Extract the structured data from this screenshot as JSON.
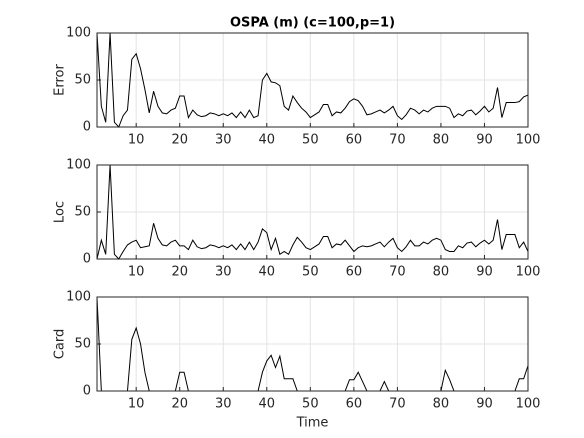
{
  "chart_data": [
    {
      "type": "line",
      "title": "OSPA (m) (c=100,p=1)",
      "ylabel": "Error",
      "color": "#000000",
      "grid": true,
      "x": [
        1,
        2,
        3,
        4,
        5,
        6,
        7,
        8,
        9,
        10,
        11,
        12,
        13,
        14,
        15,
        16,
        17,
        18,
        19,
        20,
        21,
        22,
        23,
        24,
        25,
        26,
        27,
        28,
        29,
        30,
        31,
        32,
        33,
        34,
        35,
        36,
        37,
        38,
        39,
        40,
        41,
        42,
        43,
        44,
        45,
        46,
        47,
        48,
        49,
        50,
        51,
        52,
        53,
        54,
        55,
        56,
        57,
        58,
        59,
        60,
        61,
        62,
        63,
        64,
        65,
        66,
        67,
        68,
        69,
        70,
        71,
        72,
        73,
        74,
        75,
        76,
        77,
        78,
        79,
        80,
        81,
        82,
        83,
        84,
        85,
        86,
        87,
        88,
        89,
        90,
        91,
        92,
        93,
        94,
        95,
        96,
        97,
        98,
        99,
        100
      ],
      "values": [
        100,
        22,
        5,
        100,
        5,
        0,
        12,
        18,
        72,
        78,
        62,
        40,
        15,
        38,
        22,
        15,
        14,
        18,
        20,
        33,
        33,
        10,
        18,
        13,
        11,
        12,
        15,
        14,
        12,
        14,
        12,
        15,
        10,
        16,
        10,
        18,
        10,
        12,
        50,
        57,
        48,
        47,
        44,
        22,
        18,
        33,
        26,
        20,
        16,
        10,
        13,
        16,
        24,
        24,
        12,
        16,
        15,
        20,
        27,
        30,
        28,
        22,
        13,
        14,
        16,
        18,
        15,
        18,
        22,
        12,
        8,
        13,
        20,
        18,
        14,
        18,
        16,
        20,
        22,
        22,
        22,
        20,
        10,
        14,
        12,
        17,
        18,
        13,
        17,
        22,
        16,
        20,
        42,
        10,
        26,
        26,
        26,
        27,
        32,
        34
      ],
      "xlim": [
        1,
        100
      ],
      "xticks": [
        10,
        20,
        30,
        40,
        50,
        60,
        70,
        80,
        90,
        100
      ],
      "ylim": [
        0,
        100
      ],
      "yticks": [
        0,
        50,
        100
      ]
    },
    {
      "type": "line",
      "ylabel": "Loc",
      "color": "#000000",
      "grid": true,
      "x": [
        1,
        2,
        3,
        4,
        5,
        6,
        7,
        8,
        9,
        10,
        11,
        12,
        13,
        14,
        15,
        16,
        17,
        18,
        19,
        20,
        21,
        22,
        23,
        24,
        25,
        26,
        27,
        28,
        29,
        30,
        31,
        32,
        33,
        34,
        35,
        36,
        37,
        38,
        39,
        40,
        41,
        42,
        43,
        44,
        45,
        46,
        47,
        48,
        49,
        50,
        51,
        52,
        53,
        54,
        55,
        56,
        57,
        58,
        59,
        60,
        61,
        62,
        63,
        64,
        65,
        66,
        67,
        68,
        69,
        70,
        71,
        72,
        73,
        74,
        75,
        76,
        77,
        78,
        79,
        80,
        81,
        82,
        83,
        84,
        85,
        86,
        87,
        88,
        89,
        90,
        91,
        92,
        93,
        94,
        95,
        96,
        97,
        98,
        99,
        100
      ],
      "values": [
        0,
        20,
        5,
        100,
        5,
        0,
        8,
        15,
        18,
        20,
        12,
        13,
        14,
        38,
        22,
        15,
        14,
        18,
        20,
        14,
        14,
        10,
        20,
        13,
        11,
        12,
        15,
        14,
        12,
        14,
        12,
        15,
        10,
        16,
        10,
        18,
        10,
        18,
        32,
        28,
        10,
        22,
        5,
        8,
        5,
        15,
        23,
        18,
        12,
        10,
        13,
        16,
        24,
        24,
        12,
        16,
        15,
        20,
        14,
        8,
        12,
        14,
        13,
        14,
        16,
        18,
        13,
        18,
        22,
        12,
        8,
        13,
        20,
        14,
        14,
        18,
        16,
        20,
        22,
        20,
        10,
        8,
        8,
        14,
        12,
        17,
        18,
        13,
        17,
        20,
        16,
        20,
        42,
        10,
        26,
        26,
        26,
        12,
        18,
        8
      ],
      "xlim": [
        1,
        100
      ],
      "xticks": [
        10,
        20,
        30,
        40,
        50,
        60,
        70,
        80,
        90,
        100
      ],
      "ylim": [
        0,
        100
      ],
      "yticks": [
        0,
        50,
        100
      ]
    },
    {
      "type": "line",
      "ylabel": "Card",
      "xlabel": "Time",
      "color": "#000000",
      "grid": true,
      "x": [
        1,
        2,
        3,
        4,
        5,
        6,
        7,
        8,
        9,
        10,
        11,
        12,
        13,
        14,
        15,
        16,
        17,
        18,
        19,
        20,
        21,
        22,
        23,
        24,
        25,
        26,
        27,
        28,
        29,
        30,
        31,
        32,
        33,
        34,
        35,
        36,
        37,
        38,
        39,
        40,
        41,
        42,
        43,
        44,
        45,
        46,
        47,
        48,
        49,
        50,
        51,
        52,
        53,
        54,
        55,
        56,
        57,
        58,
        59,
        60,
        61,
        62,
        63,
        64,
        65,
        66,
        67,
        68,
        69,
        70,
        71,
        72,
        73,
        74,
        75,
        76,
        77,
        78,
        79,
        80,
        81,
        82,
        83,
        84,
        85,
        86,
        87,
        88,
        89,
        90,
        91,
        92,
        93,
        94,
        95,
        96,
        97,
        98,
        99,
        100
      ],
      "values": [
        100,
        0,
        0,
        0,
        0,
        0,
        0,
        0,
        55,
        67,
        50,
        20,
        0,
        0,
        0,
        0,
        0,
        0,
        0,
        20,
        20,
        0,
        0,
        0,
        0,
        0,
        0,
        0,
        0,
        0,
        0,
        0,
        0,
        0,
        0,
        0,
        0,
        0,
        20,
        32,
        38,
        25,
        37,
        13,
        13,
        13,
        0,
        0,
        0,
        0,
        0,
        0,
        0,
        0,
        0,
        0,
        0,
        0,
        12,
        12,
        20,
        10,
        0,
        0,
        0,
        0,
        10,
        0,
        0,
        0,
        0,
        0,
        0,
        0,
        0,
        0,
        0,
        0,
        0,
        0,
        22,
        12,
        0,
        0,
        0,
        0,
        0,
        0,
        0,
        0,
        0,
        0,
        0,
        0,
        0,
        0,
        0,
        13,
        13,
        27
      ],
      "xlim": [
        1,
        100
      ],
      "xticks": [
        10,
        20,
        30,
        40,
        50,
        60,
        70,
        80,
        90,
        100
      ],
      "ylim": [
        0,
        100
      ],
      "yticks": [
        0,
        50,
        100
      ]
    }
  ]
}
